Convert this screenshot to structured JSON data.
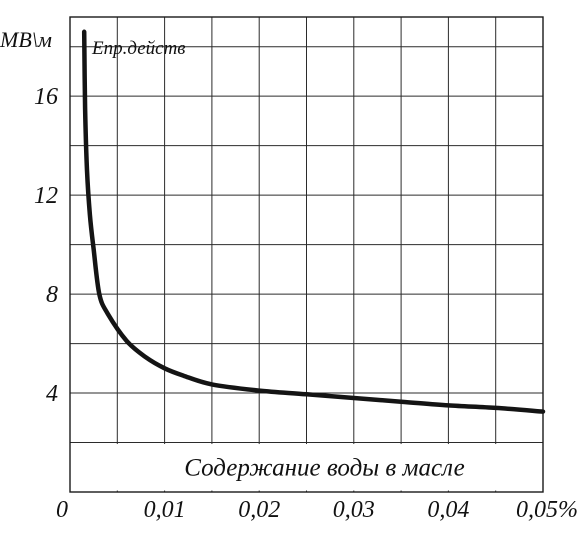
{
  "chart_data": {
    "type": "line",
    "title": "",
    "ylabel": "МВ\\м",
    "xlabel": "Содержание воды в масле",
    "series_label": "Eпр.действ",
    "xlim": [
      0,
      0.05
    ],
    "ylim": [
      0,
      19.2
    ],
    "x_ticks": [
      {
        "value": 0,
        "label": "0"
      },
      {
        "value": 0.01,
        "label": "0,01"
      },
      {
        "value": 0.02,
        "label": "0,02"
      },
      {
        "value": 0.03,
        "label": "0,03"
      },
      {
        "value": 0.04,
        "label": "0,04"
      },
      {
        "value": 0.05,
        "label": "0,05%"
      }
    ],
    "y_ticks": [
      {
        "value": 4,
        "label": "4"
      },
      {
        "value": 8,
        "label": "8"
      },
      {
        "value": 12,
        "label": "12"
      },
      {
        "value": 16,
        "label": "16"
      }
    ],
    "grid": true,
    "series": [
      {
        "color": "#141414",
        "points": [
          [
            0.0015,
            18.6
          ],
          [
            0.0016,
            15.5
          ],
          [
            0.0018,
            13.0
          ],
          [
            0.0021,
            11.2
          ],
          [
            0.0025,
            9.8
          ],
          [
            0.0031,
            8.0
          ],
          [
            0.004,
            7.2
          ],
          [
            0.006,
            6.1
          ],
          [
            0.008,
            5.45
          ],
          [
            0.01,
            5.0
          ],
          [
            0.012,
            4.7
          ],
          [
            0.015,
            4.35
          ],
          [
            0.02,
            4.1
          ],
          [
            0.025,
            3.95
          ],
          [
            0.03,
            3.8
          ],
          [
            0.035,
            3.65
          ],
          [
            0.04,
            3.5
          ],
          [
            0.045,
            3.4
          ],
          [
            0.05,
            3.25
          ]
        ]
      }
    ]
  }
}
